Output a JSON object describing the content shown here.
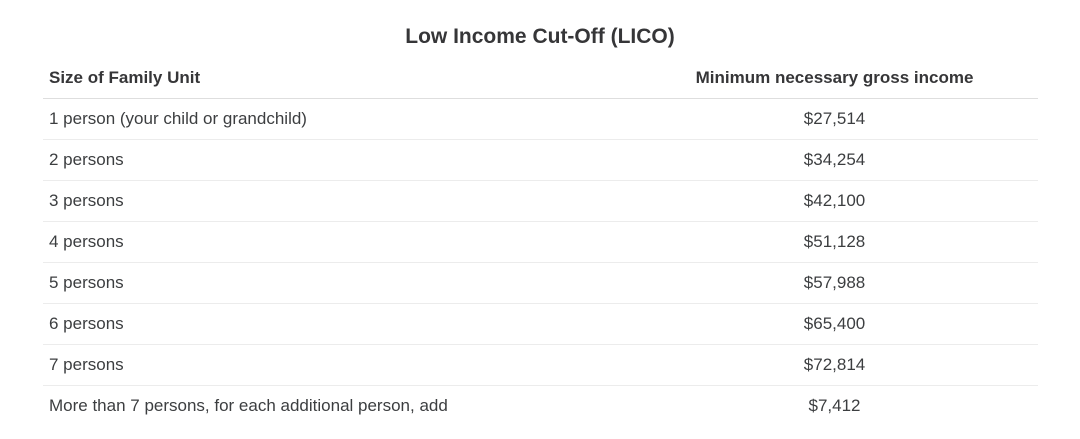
{
  "chart_data": {
    "type": "table",
    "title": "Low Income Cut-Off (LICO)",
    "columns": [
      "Size of Family Unit",
      "Minimum necessary gross income"
    ],
    "rows": [
      [
        "1 person (your child or grandchild)",
        "$27,514"
      ],
      [
        "2 persons",
        "$34,254"
      ],
      [
        "3 persons",
        "$42,100"
      ],
      [
        "4 persons",
        "$51,128"
      ],
      [
        "5 persons",
        "$57,988"
      ],
      [
        "6 persons",
        "$65,400"
      ],
      [
        "7 persons",
        "$72,814"
      ],
      [
        "More than 7 persons, for each additional person, add",
        "$7,412"
      ]
    ]
  },
  "colors": {
    "title_text": "#363638",
    "row_text": "#3c3e40",
    "header_divider": "#dedede",
    "row_divider": "#ececec",
    "background": "#ffffff"
  }
}
